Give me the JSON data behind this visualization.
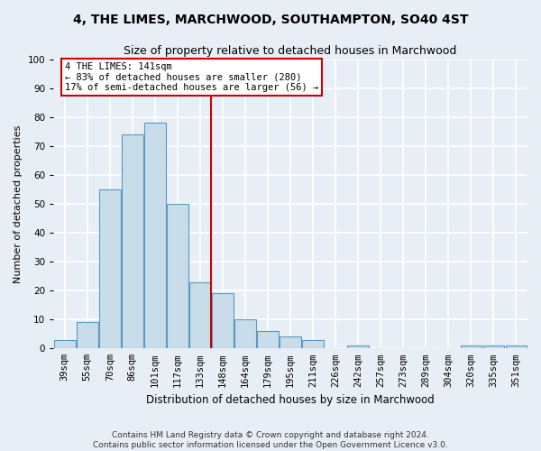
{
  "title": "4, THE LIMES, MARCHWOOD, SOUTHAMPTON, SO40 4ST",
  "subtitle": "Size of property relative to detached houses in Marchwood",
  "xlabel": "Distribution of detached houses by size in Marchwood",
  "ylabel": "Number of detached properties",
  "categories": [
    "39sqm",
    "55sqm",
    "70sqm",
    "86sqm",
    "101sqm",
    "117sqm",
    "133sqm",
    "148sqm",
    "164sqm",
    "179sqm",
    "195sqm",
    "211sqm",
    "226sqm",
    "242sqm",
    "257sqm",
    "273sqm",
    "289sqm",
    "304sqm",
    "320sqm",
    "335sqm",
    "351sqm"
  ],
  "values": [
    3,
    9,
    55,
    74,
    78,
    50,
    23,
    19,
    10,
    6,
    4,
    3,
    0,
    1,
    0,
    0,
    0,
    0,
    1,
    1,
    1
  ],
  "bar_color": "#c8dcea",
  "bar_edge_color": "#5a9abf",
  "vline_x": 6.5,
  "annotation_title": "4 THE LIMES: 141sqm",
  "annotation_line1": "← 83% of detached houses are smaller (280)",
  "annotation_line2": "17% of semi-detached houses are larger (56) →",
  "annotation_box_color": "#ffffff",
  "annotation_box_edge": "#cc0000",
  "vline_color": "#cc0000",
  "ylim": [
    0,
    100
  ],
  "yticks": [
    0,
    10,
    20,
    30,
    40,
    50,
    60,
    70,
    80,
    90,
    100
  ],
  "background_color": "#e8eef5",
  "grid_color": "#ffffff",
  "footnote1": "Contains HM Land Registry data © Crown copyright and database right 2024.",
  "footnote2": "Contains public sector information licensed under the Open Government Licence v3.0.",
  "title_fontsize": 10,
  "subtitle_fontsize": 9,
  "xlabel_fontsize": 8.5,
  "ylabel_fontsize": 8,
  "tick_fontsize": 7.5,
  "footnote_fontsize": 6.5
}
